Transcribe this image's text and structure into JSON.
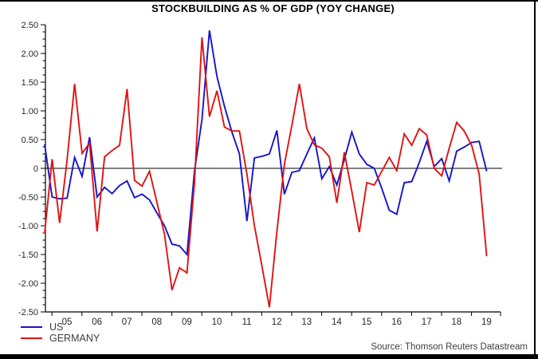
{
  "title": "STOCKBUILDING AS % OF GDP (YOY CHANGE)",
  "source": "Source: Thomson Reuters Datastream",
  "colors": {
    "us_line": "#1414cc",
    "germany_line": "#e11212",
    "axis": "#000000",
    "tick_label": "#262626",
    "legend_text": "#3d3d3d"
  },
  "legend": [
    {
      "label": "US",
      "color": "#1414cc"
    },
    {
      "label": "GERMANY",
      "color": "#e11212"
    }
  ],
  "chart_data": {
    "type": "line",
    "title": "STOCKBUILDING AS % OF GDP (YOY CHANGE)",
    "xlabel": "",
    "ylabel": "",
    "ylim": [
      -2.5,
      2.5
    ],
    "ytick_step": 0.5,
    "grid": false,
    "zero_line": true,
    "legend_position": "bottom-left",
    "y_tick_labels": [
      "2.50",
      "2.00",
      "1.50",
      "1.00",
      "0.50",
      "0",
      "-0.50",
      "-1.00",
      "-1.50",
      "-2.00",
      "-2.50"
    ],
    "x_tick_labels": [
      "05",
      "06",
      "07",
      "08",
      "09",
      "10",
      "11",
      "12",
      "13",
      "14",
      "15",
      "16",
      "17",
      "18",
      "19"
    ],
    "categories": [
      "2004Q4",
      "2005Q1",
      "2005Q2",
      "2005Q3",
      "2005Q4",
      "2006Q1",
      "2006Q2",
      "2006Q3",
      "2006Q4",
      "2007Q1",
      "2007Q2",
      "2007Q3",
      "2007Q4",
      "2008Q1",
      "2008Q2",
      "2008Q3",
      "2008Q4",
      "2009Q1",
      "2009Q2",
      "2009Q3",
      "2009Q4",
      "2010Q1",
      "2010Q2",
      "2010Q3",
      "2010Q4",
      "2011Q1",
      "2011Q2",
      "2011Q3",
      "2011Q4",
      "2012Q1",
      "2012Q2",
      "2012Q3",
      "2012Q4",
      "2013Q1",
      "2013Q2",
      "2013Q3",
      "2013Q4",
      "2014Q1",
      "2014Q2",
      "2014Q3",
      "2014Q4",
      "2015Q1",
      "2015Q2",
      "2015Q3",
      "2015Q4",
      "2016Q1",
      "2016Q2",
      "2016Q3",
      "2016Q4",
      "2017Q1",
      "2017Q2",
      "2017Q3",
      "2017Q4",
      "2018Q1",
      "2018Q2",
      "2018Q3",
      "2018Q4",
      "2019Q1",
      "2019Q2",
      "2019Q3"
    ],
    "series": [
      {
        "name": "US",
        "color": "#1414cc",
        "values": [
          0.42,
          -0.5,
          -0.53,
          -0.52,
          0.19,
          -0.14,
          0.54,
          -0.5,
          -0.33,
          -0.44,
          -0.3,
          -0.22,
          -0.51,
          -0.45,
          -0.55,
          -0.78,
          -1.0,
          -1.32,
          -1.35,
          -1.5,
          -0.05,
          0.85,
          2.4,
          1.6,
          1.08,
          0.63,
          0.25,
          -0.92,
          0.18,
          0.21,
          0.25,
          0.66,
          -0.45,
          -0.07,
          -0.04,
          0.25,
          0.53,
          -0.18,
          0.03,
          -0.29,
          0.15,
          0.63,
          0.25,
          0.07,
          0.0,
          -0.35,
          -0.73,
          -0.8,
          -0.25,
          -0.23,
          0.1,
          0.47,
          0.03,
          0.17,
          -0.22,
          0.3,
          0.37,
          0.45,
          0.47,
          -0.05
        ]
      },
      {
        "name": "GERMANY",
        "color": "#e11212",
        "values": [
          -1.13,
          0.16,
          -0.95,
          0.15,
          1.47,
          0.26,
          0.44,
          -1.1,
          0.2,
          0.31,
          0.4,
          1.38,
          -0.21,
          -0.31,
          -0.05,
          -0.6,
          -1.15,
          -2.12,
          -1.73,
          -1.82,
          -0.25,
          2.28,
          0.9,
          1.35,
          0.72,
          0.65,
          0.65,
          -0.1,
          -1.0,
          -1.7,
          -2.42,
          -1.1,
          0.07,
          0.75,
          1.47,
          0.69,
          0.41,
          0.35,
          0.2,
          -0.6,
          0.28,
          -0.4,
          -1.11,
          -0.25,
          -0.29,
          -0.05,
          0.19,
          -0.04,
          0.6,
          0.4,
          0.69,
          0.58,
          0.0,
          -0.13,
          0.35,
          0.8,
          0.65,
          0.4,
          -0.1,
          -1.53
        ]
      }
    ]
  }
}
